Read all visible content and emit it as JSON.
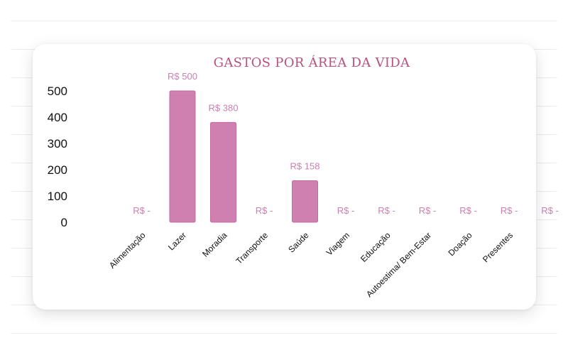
{
  "chart_data": {
    "type": "bar",
    "title": "GASTOS POR ÁREA DA VIDA",
    "xlabel": "",
    "ylabel": "",
    "categories": [
      "Alimentação",
      "Lazer",
      "Moradia",
      "Transporte",
      "Saúde",
      "Viagem",
      "Educação",
      "Autoestima/ Bem-Estar",
      "Doação",
      "Presentes"
    ],
    "values": [
      0,
      500,
      380,
      0,
      158,
      0,
      0,
      0,
      0,
      0
    ],
    "data_labels": [
      "R$  -",
      "R$  500",
      "R$  380",
      "R$  -",
      "R$  158",
      "R$  -",
      "R$  -",
      "R$  -",
      "R$  -",
      "R$  -"
    ],
    "extra_data_labels": [
      "R$  -"
    ],
    "ylim": [
      0,
      500
    ],
    "yticks": [
      "0",
      "100",
      "200",
      "300",
      "400",
      "500"
    ],
    "grid": false,
    "legend": "none",
    "bar_color": "#cf80b0",
    "bar_stroke": "#c06c9f",
    "title_color": "#b5527f",
    "label_color": "#cc7fb0"
  }
}
